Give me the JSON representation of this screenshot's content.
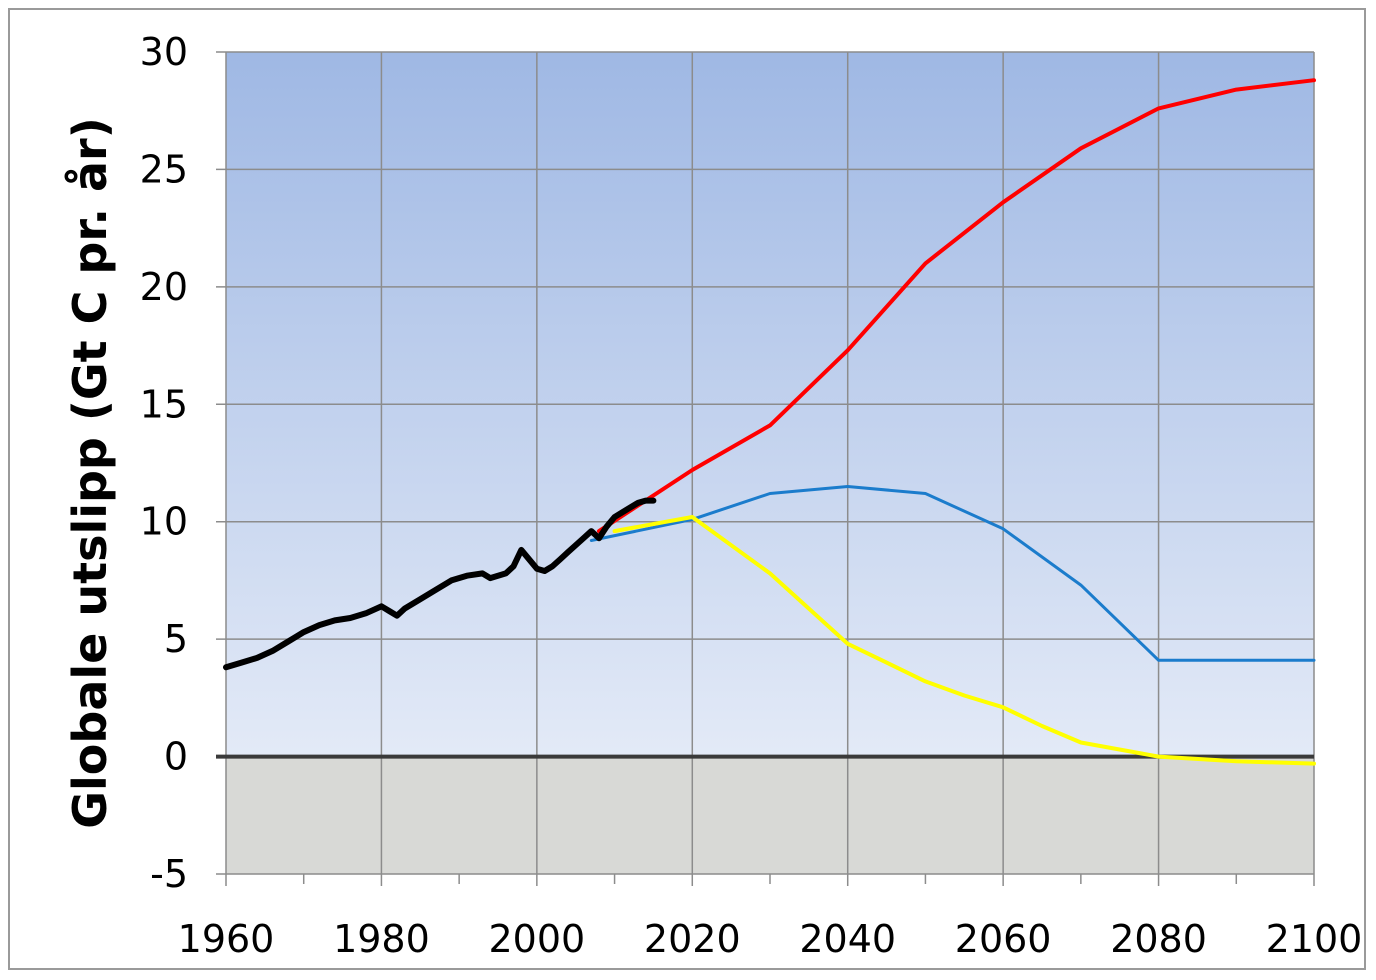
{
  "chart_data": {
    "type": "line",
    "title": "",
    "xlabel": "",
    "ylabel": "Globale utslipp (Gt C pr. år)",
    "xlim": [
      1960,
      2100
    ],
    "ylim": [
      -5,
      30
    ],
    "x_ticks": [
      1960,
      1980,
      2000,
      2020,
      2040,
      2060,
      2080,
      2100
    ],
    "y_ticks": [
      -5,
      0,
      5,
      10,
      15,
      20,
      25,
      30
    ],
    "x_tick_labels": [
      "1960",
      "1980",
      "2000",
      "2020",
      "2040",
      "2060",
      "2080",
      "2100"
    ],
    "y_tick_labels": [
      "-5",
      "0",
      "5",
      "10",
      "15",
      "20",
      "25",
      "30"
    ],
    "grid": true,
    "legend": "none",
    "background": {
      "above_zero_gradient": [
        "#9fb8e4",
        "#e3eaf7"
      ],
      "below_zero": "#d8d9d6"
    },
    "series": [
      {
        "color": "#ff0000",
        "x": [
          2008,
          2020,
          2030,
          2040,
          2050,
          2060,
          2070,
          2080,
          2090,
          2100
        ],
        "y": [
          9.6,
          12.2,
          14.1,
          17.3,
          21.0,
          23.6,
          25.9,
          27.6,
          28.4,
          28.8
        ]
      },
      {
        "color": "#1b7ccc",
        "x": [
          2007,
          2020,
          2030,
          2040,
          2050,
          2060,
          2070,
          2080,
          2090,
          2100
        ],
        "y": [
          9.2,
          10.1,
          11.2,
          11.5,
          11.2,
          9.7,
          7.3,
          4.1,
          4.1,
          4.1
        ],
        "line_width": 3
      },
      {
        "color": "#ffff00",
        "x": [
          2010,
          2020,
          2030,
          2040,
          2045,
          2050,
          2055,
          2060,
          2065,
          2070,
          2080,
          2090,
          2100
        ],
        "y": [
          9.6,
          10.2,
          7.8,
          4.8,
          4.0,
          3.2,
          2.6,
          2.1,
          1.3,
          0.6,
          0.0,
          -0.2,
          -0.3
        ]
      },
      {
        "color": "#000000",
        "x": [
          1960,
          1962,
          1964,
          1966,
          1968,
          1970,
          1972,
          1974,
          1976,
          1978,
          1980,
          1981,
          1982,
          1983,
          1985,
          1987,
          1989,
          1991,
          1993,
          1994,
          1996,
          1997,
          1998,
          1999,
          2000,
          2001,
          2002,
          2003,
          2004,
          2005,
          2006,
          2007,
          2008,
          2009,
          2010,
          2011,
          2012,
          2013,
          2014,
          2015
        ],
        "y": [
          3.8,
          4.0,
          4.2,
          4.5,
          4.9,
          5.3,
          5.6,
          5.8,
          5.9,
          6.1,
          6.4,
          6.2,
          6.0,
          6.3,
          6.7,
          7.1,
          7.5,
          7.7,
          7.8,
          7.6,
          7.8,
          8.1,
          8.8,
          8.4,
          8.0,
          7.9,
          8.1,
          8.4,
          8.7,
          9.0,
          9.3,
          9.6,
          9.3,
          9.8,
          10.2,
          10.4,
          10.6,
          10.8,
          10.9,
          10.9
        ]
      }
    ]
  }
}
